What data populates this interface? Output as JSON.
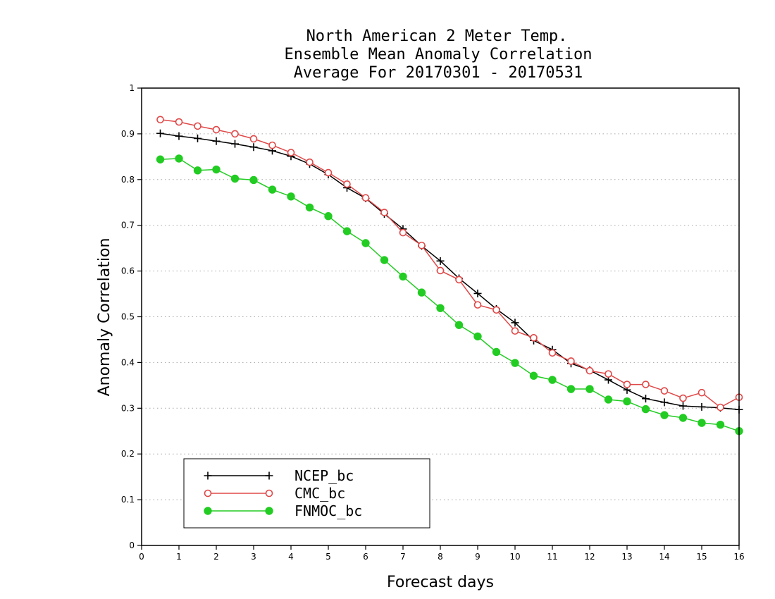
{
  "chart_data": {
    "type": "line",
    "title_lines": [
      "North American 2 Meter Temp.",
      "Ensemble Mean Anomaly Correlation",
      "Average For 20170301 - 20170531"
    ],
    "xlabel": "Forecast days",
    "ylabel": "Anomaly Correlation",
    "xlim": [
      0,
      16
    ],
    "ylim": [
      0,
      1
    ],
    "x_ticks": [
      0,
      1,
      2,
      3,
      4,
      5,
      6,
      7,
      8,
      9,
      10,
      11,
      12,
      13,
      14,
      15,
      16
    ],
    "y_ticks": [
      0,
      0.1,
      0.2,
      0.3,
      0.4,
      0.5,
      0.6,
      0.7,
      0.8,
      0.9,
      1
    ],
    "y_tick_labels": [
      "0",
      "0.1",
      "0.2",
      "0.3",
      "0.4",
      "0.5",
      "0.6",
      "0.7",
      "0.8",
      "0.9",
      "1"
    ],
    "grid": "horizontal dotted",
    "legend_position": "bottom-left",
    "x": [
      0.5,
      1,
      1.5,
      2,
      2.5,
      3,
      3.5,
      4,
      4.5,
      5,
      5.5,
      6,
      6.5,
      7,
      7.5,
      8,
      8.5,
      9,
      9.5,
      10,
      10.5,
      11,
      11.5,
      12,
      12.5,
      13,
      13.5,
      14,
      14.5,
      15,
      15.5,
      16
    ],
    "series": [
      {
        "name": "NCEP_bc",
        "color": "#000000",
        "marker": "plus",
        "values": [
          0.901,
          0.895,
          0.89,
          0.884,
          0.878,
          0.871,
          0.863,
          0.851,
          0.834,
          0.811,
          0.782,
          0.759,
          0.725,
          0.692,
          0.655,
          0.622,
          0.584,
          0.551,
          0.517,
          0.487,
          0.448,
          0.428,
          0.398,
          0.383,
          0.362,
          0.34,
          0.321,
          0.313,
          0.305,
          0.303,
          0.301,
          0.297
        ]
      },
      {
        "name": "CMC_bc",
        "color": "#e04848",
        "marker": "open-circle",
        "values": [
          0.931,
          0.926,
          0.917,
          0.909,
          0.9,
          0.889,
          0.875,
          0.859,
          0.838,
          0.815,
          0.79,
          0.76,
          0.728,
          0.684,
          0.656,
          0.601,
          0.581,
          0.526,
          0.515,
          0.469,
          0.454,
          0.421,
          0.403,
          0.382,
          0.375,
          0.352,
          0.352,
          0.338,
          0.322,
          0.334,
          0.302,
          0.324
        ]
      },
      {
        "name": "FNMOC_bc",
        "color": "#22cc22",
        "marker": "filled-circle",
        "values": [
          0.844,
          0.846,
          0.82,
          0.822,
          0.802,
          0.799,
          0.778,
          0.763,
          0.739,
          0.72,
          0.687,
          0.661,
          0.624,
          0.588,
          0.553,
          0.519,
          0.482,
          0.457,
          0.423,
          0.399,
          0.371,
          0.362,
          0.342,
          0.342,
          0.319,
          0.315,
          0.298,
          0.285,
          0.279,
          0.268,
          0.264,
          0.25
        ]
      }
    ]
  }
}
